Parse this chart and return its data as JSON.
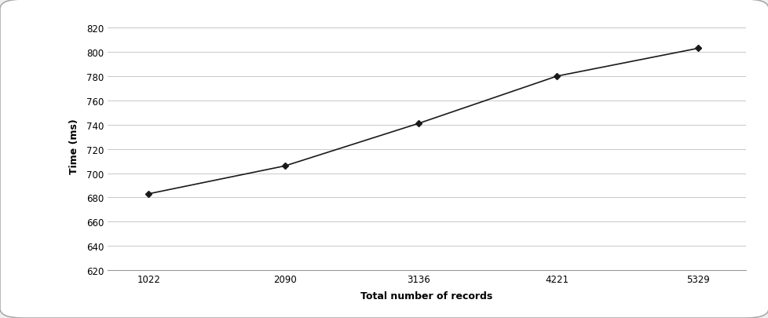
{
  "x": [
    1022,
    2090,
    3136,
    4221,
    5329
  ],
  "y": [
    683,
    706,
    741,
    780,
    803
  ],
  "xlabel": "Total number of records",
  "ylabel": "Time (ms)",
  "xlim": [
    700,
    5700
  ],
  "ylim": [
    620,
    825
  ],
  "yticks": [
    620,
    640,
    660,
    680,
    700,
    720,
    740,
    760,
    780,
    800,
    820
  ],
  "xticks": [
    1022,
    2090,
    3136,
    4221,
    5329
  ],
  "line_color": "#1a1a1a",
  "marker": "D",
  "marker_size": 4,
  "marker_color": "#1a1a1a",
  "background_color": "#ffffff",
  "grid_color": "#c8c8c8",
  "line_width": 1.2,
  "border_color": "#aaaaaa",
  "fig_bg": "#f0f0f0"
}
